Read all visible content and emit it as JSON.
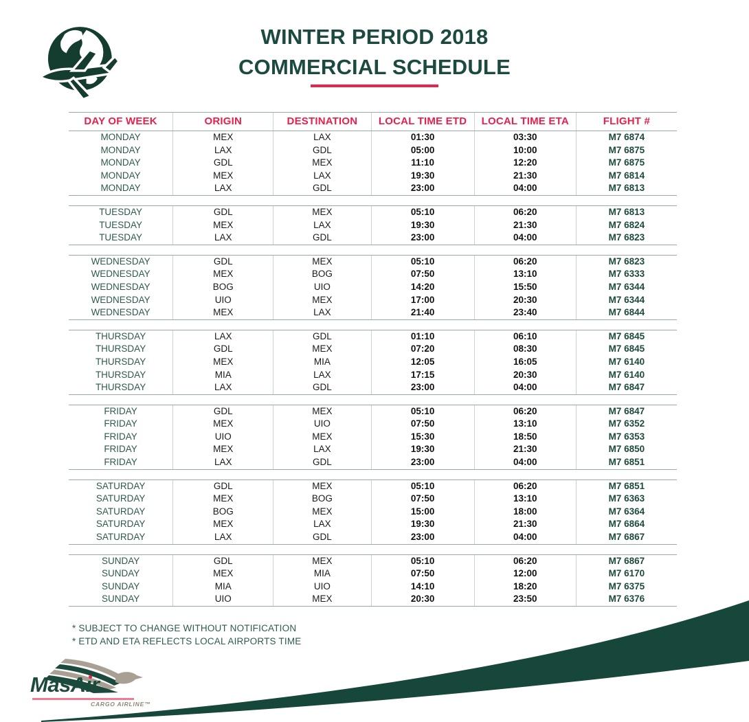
{
  "header": {
    "title_line1": "WINTER PERIOD 2018",
    "title_line2": "COMMERCIAL SCHEDULE",
    "logo_icon": "globe-airplane-icon"
  },
  "table": {
    "columns": [
      "DAY OF WEEK",
      "ORIGIN",
      "DESTINATION",
      "LOCAL TIME ETD",
      "LOCAL TIME ETA",
      "FLIGHT #"
    ],
    "groups": [
      {
        "day": "MONDAY",
        "rows": [
          [
            "MONDAY",
            "MEX",
            "LAX",
            "01:30",
            "03:30",
            "M7 6874"
          ],
          [
            "MONDAY",
            "LAX",
            "GDL",
            "05:00",
            "10:00",
            "M7 6875"
          ],
          [
            "MONDAY",
            "GDL",
            "MEX",
            "11:10",
            "12:20",
            "M7 6875"
          ],
          [
            "MONDAY",
            "MEX",
            "LAX",
            "19:30",
            "21:30",
            "M7 6814"
          ],
          [
            "MONDAY",
            "LAX",
            "GDL",
            "23:00",
            "04:00",
            "M7 6813"
          ]
        ]
      },
      {
        "day": "TUESDAY",
        "rows": [
          [
            "TUESDAY",
            "GDL",
            "MEX",
            "05:10",
            "06:20",
            "M7 6813"
          ],
          [
            "TUESDAY",
            "MEX",
            "LAX",
            "19:30",
            "21:30",
            "M7 6824"
          ],
          [
            "TUESDAY",
            "LAX",
            "GDL",
            "23:00",
            "04:00",
            "M7 6823"
          ]
        ]
      },
      {
        "day": "WEDNESDAY",
        "rows": [
          [
            "WEDNESDAY",
            "GDL",
            "MEX",
            "05:10",
            "06:20",
            "M7 6823"
          ],
          [
            "WEDNESDAY",
            "MEX",
            "BOG",
            "07:50",
            "13:10",
            "M7 6333"
          ],
          [
            "WEDNESDAY",
            "BOG",
            "UIO",
            "14:20",
            "15:50",
            "M7 6344"
          ],
          [
            "WEDNESDAY",
            "UIO",
            "MEX",
            "17:00",
            "20:30",
            "M7 6344"
          ],
          [
            "WEDNESDAY",
            "MEX",
            "LAX",
            "21:40",
            "23:40",
            "M7 6844"
          ]
        ]
      },
      {
        "day": "THURSDAY",
        "rows": [
          [
            "THURSDAY",
            "LAX",
            "GDL",
            "01:10",
            "06:10",
            "M7 6845"
          ],
          [
            "THURSDAY",
            "GDL",
            "MEX",
            "07:20",
            "08:30",
            "M7 6845"
          ],
          [
            "THURSDAY",
            "MEX",
            "MIA",
            "12:05",
            "16:05",
            "M7 6140"
          ],
          [
            "THURSDAY",
            "MIA",
            "LAX",
            "17:15",
            "20:30",
            "M7 6140"
          ],
          [
            "THURSDAY",
            "LAX",
            "GDL",
            "23:00",
            "04:00",
            "M7 6847"
          ]
        ]
      },
      {
        "day": "FRIDAY",
        "rows": [
          [
            "FRIDAY",
            "GDL",
            "MEX",
            "05:10",
            "06:20",
            "M7 6847"
          ],
          [
            "FRIDAY",
            "MEX",
            "UIO",
            "07:50",
            "13:10",
            "M7 6352"
          ],
          [
            "FRIDAY",
            "UIO",
            "MEX",
            "15:30",
            "18:50",
            "M7 6353"
          ],
          [
            "FRIDAY",
            "MEX",
            "LAX",
            "19:30",
            "21:30",
            "M7 6850"
          ],
          [
            "FRIDAY",
            "LAX",
            "GDL",
            "23:00",
            "04:00",
            "M7 6851"
          ]
        ]
      },
      {
        "day": "SATURDAY",
        "rows": [
          [
            "SATURDAY",
            "GDL",
            "MEX",
            "05:10",
            "06:20",
            "M7 6851"
          ],
          [
            "SATURDAY",
            "MEX",
            "BOG",
            "07:50",
            "13:10",
            "M7 6363"
          ],
          [
            "SATURDAY",
            "BOG",
            "MEX",
            "15:00",
            "18:00",
            "M7 6364"
          ],
          [
            "SATURDAY",
            "MEX",
            "LAX",
            "19:30",
            "21:30",
            "M7 6864"
          ],
          [
            "SATURDAY",
            "LAX",
            "GDL",
            "23:00",
            "04:00",
            "M7 6867"
          ]
        ]
      },
      {
        "day": "SUNDAY",
        "rows": [
          [
            "SUNDAY",
            "GDL",
            "MEX",
            "05:10",
            "06:20",
            "M7 6867"
          ],
          [
            "SUNDAY",
            "MEX",
            "MIA",
            "07:50",
            "12:00",
            "M7 6170"
          ],
          [
            "SUNDAY",
            "MIA",
            "UIO",
            "14:10",
            "18:20",
            "M7 6375"
          ],
          [
            "SUNDAY",
            "UIO",
            "MEX",
            "20:30",
            "23:50",
            "M7 6376"
          ]
        ]
      }
    ]
  },
  "notes": {
    "line1": "* SUBJECT TO CHANGE WITHOUT NOTIFICATION",
    "line2": "* ETD AND ETA REFLECTS LOCAL AIRPORTS TIME"
  },
  "brand": {
    "name": "MasAir",
    "wordmark_pre": "MasA",
    "wordmark_i": "ı",
    "wordmark_post": "r",
    "tagline": "CARGO AIRLINE™",
    "wing_icon": "eagle-wing-icon"
  },
  "colors": {
    "dark_green": "#1d4a40",
    "crimson": "#e7214b",
    "pink_underline": "#f2798f",
    "logo_gray": "#a8a193",
    "tagline_gray": "#8d8774"
  }
}
